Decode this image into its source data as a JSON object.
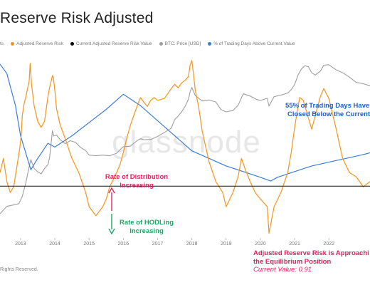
{
  "header": {
    "title": "Reserve Risk Adjusted"
  },
  "legend": {
    "items": [
      {
        "label": "ts",
        "color": "#c8c8c8"
      },
      {
        "label": "Adjusted Reserve Risk",
        "color": "#f7931a"
      },
      {
        "label": "Current Adjusted Reserve Risk Value",
        "color": "#000000"
      },
      {
        "label": "BTC: Price [USD]",
        "color": "#9e9e9e"
      },
      {
        "label": "% of Trading Days Above Current Value",
        "color": "#3c7dd9"
      }
    ]
  },
  "annotations": {
    "distribution_line1": "Rate of Distribution",
    "distribution_line2": "Increasing",
    "hodling_line1": "Rate of HODLing",
    "hodling_line2": "Increasing",
    "trading_line1": "55% of Trading Days Have",
    "trading_line2": "Closed Below the Current Va",
    "equilibrium_line1": "Adjusted Reserve Risk is Approachi",
    "equilibrium_line2": "the Equilibrium Position",
    "current_value": "Current Value: 0.91"
  },
  "watermark": "glassnode",
  "footer": {
    "copyright": "Rights Reserved."
  },
  "colors": {
    "orange": "#f7931a",
    "gray": "#9e9e9e",
    "blue": "#3c7dd9",
    "pink": "#e0245e",
    "green": "#21a366",
    "navy": "#1c5fc9"
  },
  "chart_data": {
    "type": "line",
    "x_tick_labels": [
      "2013",
      "2014",
      "2015",
      "2016",
      "2017",
      "2018",
      "2019",
      "2020",
      "2021",
      "2022"
    ],
    "x_tick_years": [
      2013,
      2014,
      2015,
      2016,
      2017,
      2018,
      2019,
      2020,
      2021,
      2022
    ],
    "x_range": [
      2012.4,
      2023.2
    ],
    "current_value_line": 0.91,
    "series": [
      {
        "name": "Adjusted Reserve Risk",
        "color": "#f7931a",
        "x": [
          2012.4,
          2012.5,
          2012.6,
          2012.7,
          2012.8,
          2012.9,
          2012.98,
          2013.02,
          2013.05,
          2013.1,
          2013.15,
          2013.2,
          2013.25,
          2013.28,
          2013.32,
          2013.4,
          2013.5,
          2013.6,
          2013.7,
          2013.75,
          2013.8,
          2013.85,
          2013.9,
          2013.93,
          2013.96,
          2014.0,
          2014.05,
          2014.15,
          2014.3,
          2014.5,
          2014.7,
          2014.9,
          2015.0,
          2015.2,
          2015.4,
          2015.5,
          2015.6,
          2015.75,
          2015.9,
          2016.0,
          2016.1,
          2016.2,
          2016.3,
          2016.4,
          2016.5,
          2016.6,
          2016.7,
          2016.8,
          2016.9,
          2017.0,
          2017.2,
          2017.4,
          2017.5,
          2017.6,
          2017.7,
          2017.8,
          2017.9,
          2017.95,
          2018.0,
          2018.05,
          2018.1,
          2018.2,
          2018.3,
          2018.5,
          2018.7,
          2018.9,
          2019.0,
          2019.2,
          2019.35,
          2019.45,
          2019.55,
          2019.7,
          2019.85,
          2020.0,
          2020.2,
          2020.25,
          2020.4,
          2020.6,
          2020.8,
          2020.9,
          2021.0,
          2021.1,
          2021.15,
          2021.25,
          2021.35,
          2021.5,
          2021.6,
          2021.75,
          2021.85,
          2022.0,
          2022.2,
          2022.4,
          2022.6,
          2022.8,
          2023.0,
          2023.2
        ],
        "y": [
          1.2,
          1.6,
          1.0,
          0.8,
          0.9,
          1.4,
          2.0,
          2.6,
          3.8,
          4.8,
          5.5,
          6.5,
          7.6,
          11.0,
          7.2,
          4.6,
          3.4,
          3.0,
          3.4,
          4.4,
          5.6,
          6.8,
          7.8,
          8.6,
          8.2,
          6.4,
          4.4,
          3.2,
          2.4,
          1.6,
          1.2,
          0.8,
          0.6,
          0.5,
          0.6,
          0.7,
          0.9,
          1.1,
          1.4,
          1.8,
          2.4,
          3.1,
          3.8,
          4.6,
          5.5,
          5.0,
          4.6,
          5.2,
          5.5,
          5.2,
          5.4,
          6.6,
          7.2,
          6.7,
          7.4,
          7.8,
          8.4,
          10.6,
          11.7,
          8.8,
          6.4,
          4.5,
          2.8,
          1.5,
          1.0,
          0.8,
          0.6,
          0.8,
          1.1,
          1.6,
          1.3,
          1.0,
          0.8,
          0.7,
          0.6,
          0.35,
          0.6,
          0.8,
          1.2,
          1.8,
          3.0,
          4.6,
          5.5,
          5.2,
          4.1,
          2.9,
          3.8,
          5.6,
          6.6,
          5.4,
          3.0,
          1.6,
          1.2,
          1.1,
          0.9,
          1.0
        ]
      },
      {
        "name": "BTC: Price [USD]",
        "color": "#9e9e9e",
        "x": [
          2012.4,
          2012.6,
          2012.8,
          2012.95,
          2013.05,
          2013.15,
          2013.25,
          2013.3,
          2013.4,
          2013.5,
          2013.6,
          2013.7,
          2013.8,
          2013.85,
          2013.9,
          2013.93,
          2013.97,
          2014.05,
          2014.15,
          2014.3,
          2014.45,
          2014.6,
          2014.75,
          2014.9,
          2015.0,
          2015.2,
          2015.4,
          2015.6,
          2015.8,
          2016.0,
          2016.2,
          2016.4,
          2016.5,
          2016.6,
          2016.8,
          2017.0,
          2017.2,
          2017.4,
          2017.5,
          2017.6,
          2017.7,
          2017.8,
          2017.9,
          2017.95,
          2018.0,
          2018.1,
          2018.2,
          2018.3,
          2018.5,
          2018.7,
          2018.85,
          2019.0,
          2019.2,
          2019.35,
          2019.5,
          2019.7,
          2019.9,
          2020.0,
          2020.2,
          2020.25,
          2020.4,
          2020.6,
          2020.8,
          2020.9,
          2021.0,
          2021.1,
          2021.2,
          2021.3,
          2021.4,
          2021.5,
          2021.6,
          2021.75,
          2021.85,
          2022.0,
          2022.2,
          2022.4,
          2022.6,
          2022.8,
          2023.0,
          2023.2
        ],
        "y": [
          7,
          11,
          12,
          13,
          20,
          45,
          120,
          190,
          110,
          90,
          80,
          110,
          140,
          220,
          600,
          1100,
          800,
          850,
          650,
          500,
          600,
          550,
          400,
          330,
          250,
          240,
          250,
          240,
          280,
          420,
          430,
          600,
          680,
          640,
          650,
          780,
          1000,
          1300,
          2200,
          2700,
          3500,
          4800,
          7500,
          12000,
          15500,
          9500,
          8000,
          6800,
          7200,
          6400,
          4000,
          3500,
          3800,
          5200,
          10500,
          9200,
          7400,
          7000,
          8000,
          5000,
          8800,
          9700,
          11000,
          13500,
          18500,
          33000,
          48000,
          58000,
          55000,
          38000,
          33000,
          42000,
          60000,
          62000,
          46000,
          38000,
          29000,
          21000,
          19500,
          17000
        ]
      },
      {
        "name": "% of Trading Days Above Current Value",
        "color": "#3c7dd9",
        "x": [
          2012.4,
          2012.6,
          2012.85,
          2013.0,
          2013.3,
          2013.5,
          2013.8,
          2014.0,
          2014.5,
          2015.0,
          2015.5,
          2016.0,
          2016.5,
          2017.0,
          2017.5,
          2018.0,
          2018.5,
          2019.0,
          2019.5,
          2020.0,
          2020.3,
          2020.5,
          2021.0,
          2021.5,
          2022.0,
          2022.5,
          2023.0,
          2023.2
        ],
        "y": [
          100,
          95,
          78,
          62,
          44,
          50,
          58,
          56,
          62,
          69,
          76,
          84,
          78,
          70,
          62,
          54,
          50,
          46,
          43,
          40,
          38,
          40,
          43,
          46,
          48,
          50,
          52,
          53
        ]
      }
    ]
  }
}
